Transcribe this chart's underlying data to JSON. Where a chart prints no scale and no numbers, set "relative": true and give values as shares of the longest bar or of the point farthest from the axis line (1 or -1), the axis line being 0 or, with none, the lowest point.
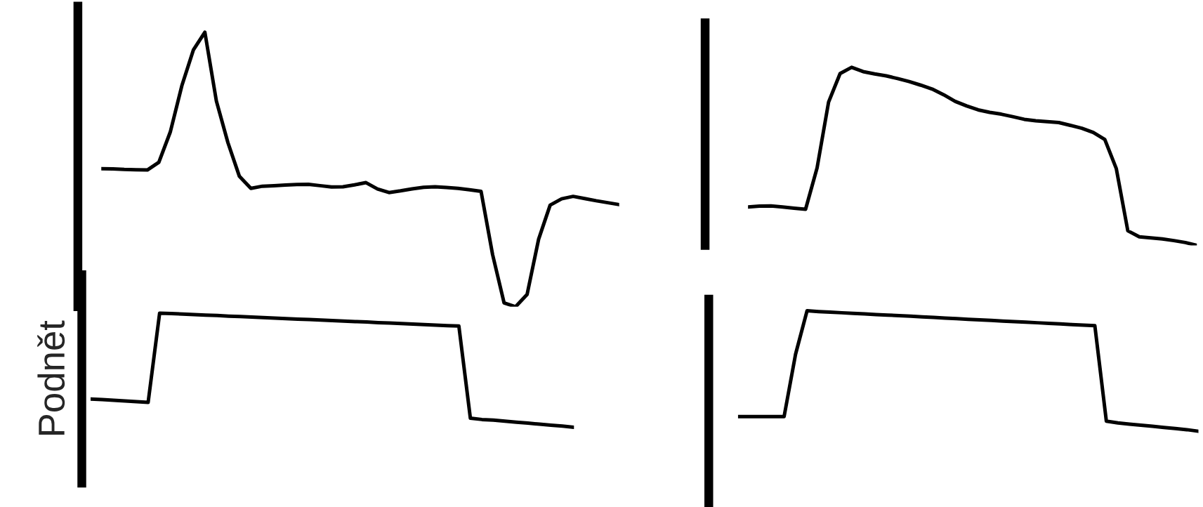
{
  "chart_data": [
    {
      "type": "line",
      "relative": true,
      "legend": false,
      "categories": [
        null,
        null,
        null,
        null,
        null,
        null,
        null,
        null,
        null,
        null,
        null,
        null,
        null,
        null,
        null,
        null,
        null,
        null,
        null,
        null,
        null,
        null,
        null,
        null,
        null,
        null,
        null,
        null,
        null,
        null,
        null,
        null,
        null,
        null,
        null,
        null,
        null,
        null,
        null,
        null,
        null,
        null,
        null,
        null,
        null,
        null
      ],
      "series": [
        {
          "color": "#000000",
          "values": [
            0.503,
            0.502,
            0.5,
            0.499,
            0.498,
            0.526,
            0.637,
            0.805,
            0.935,
            1,
            0.749,
            0.598,
            0.475,
            0.431,
            0.439,
            0.441,
            0.443,
            0.445,
            0.446,
            0.441,
            0.436,
            0.437,
            0.444,
            0.452,
            0.429,
            0.416,
            0.422,
            0.429,
            0.435,
            0.437,
            0.434,
            0.431,
            0.426,
            0.42,
            0.19,
            0.014,
            0,
            0.045,
            0.246,
            0.37,
            0.393,
            0.402,
            0.394,
            0.386,
            0.379,
            0.372
          ]
        }
      ]
    },
    {
      "type": "line",
      "relative": true,
      "legend": false,
      "ylabel": "Podnět",
      "categories": [
        null,
        null,
        null,
        null,
        null,
        null,
        null,
        null,
        null,
        null,
        null,
        null,
        null,
        null,
        null,
        null,
        null,
        null,
        null,
        null,
        null,
        null,
        null,
        null,
        null,
        null,
        null,
        null,
        null,
        null,
        null,
        null,
        null,
        null,
        null,
        null,
        null,
        null,
        null,
        null,
        null,
        null,
        null
      ],
      "series": [
        {
          "color": "#000000",
          "values": [
            0.248,
            0.242,
            0.236,
            0.23,
            0.224,
            0.218,
            1,
            0.996,
            0.992,
            0.987,
            0.983,
            0.979,
            0.974,
            0.97,
            0.966,
            0.961,
            0.957,
            0.952,
            0.948,
            0.944,
            0.939,
            0.935,
            0.93,
            0.926,
            0.922,
            0.917,
            0.913,
            0.909,
            0.904,
            0.9,
            0.895,
            0.891,
            0.887,
            0.079,
            0.068,
            0.062,
            0.053,
            0.044,
            0.036,
            0.027,
            0.018,
            0.01,
            0
          ]
        }
      ]
    },
    {
      "type": "line",
      "relative": true,
      "legend": false,
      "categories": [
        null,
        null,
        null,
        null,
        null,
        null,
        null,
        null,
        null,
        null,
        null,
        null,
        null,
        null,
        null,
        null,
        null,
        null,
        null,
        null,
        null,
        null,
        null,
        null,
        null,
        null,
        null,
        null,
        null,
        null,
        null,
        null,
        null,
        null,
        null,
        null,
        null,
        null,
        null,
        null
      ],
      "series": [
        {
          "color": "#000000",
          "values": [
            0.216,
            0.221,
            0.222,
            0.216,
            0.209,
            0.203,
            0.435,
            0.805,
            0.965,
            1,
            0.976,
            0.963,
            0.952,
            0.937,
            0.92,
            0.9,
            0.878,
            0.846,
            0.809,
            0.783,
            0.761,
            0.747,
            0.737,
            0.723,
            0.708,
            0.7,
            0.695,
            0.69,
            0.674,
            0.658,
            0.634,
            0.595,
            0.431,
            0.082,
            0.048,
            0.042,
            0.036,
            0.027,
            0.016,
            0
          ]
        }
      ]
    },
    {
      "type": "line",
      "relative": true,
      "legend": false,
      "categories": [
        null,
        null,
        null,
        null,
        null,
        null,
        null,
        null,
        null,
        null,
        null,
        null,
        null,
        null,
        null,
        null,
        null,
        null,
        null,
        null,
        null,
        null,
        null,
        null,
        null,
        null,
        null,
        null,
        null,
        null,
        null,
        null,
        null,
        null,
        null,
        null,
        null,
        null,
        null,
        null,
        null
      ],
      "series": [
        {
          "color": "#000000",
          "values": [
            0.121,
            0.121,
            0.121,
            0.121,
            0.121,
            0.64,
            1,
            0.993,
            0.988,
            0.983,
            0.978,
            0.973,
            0.968,
            0.964,
            0.959,
            0.954,
            0.949,
            0.944,
            0.939,
            0.934,
            0.929,
            0.924,
            0.919,
            0.914,
            0.909,
            0.905,
            0.9,
            0.895,
            0.89,
            0.885,
            0.88,
            0.876,
            0.084,
            0.069,
            0.059,
            0.05,
            0.041,
            0.031,
            0.022,
            0.013,
            0
          ]
        }
      ]
    }
  ]
}
